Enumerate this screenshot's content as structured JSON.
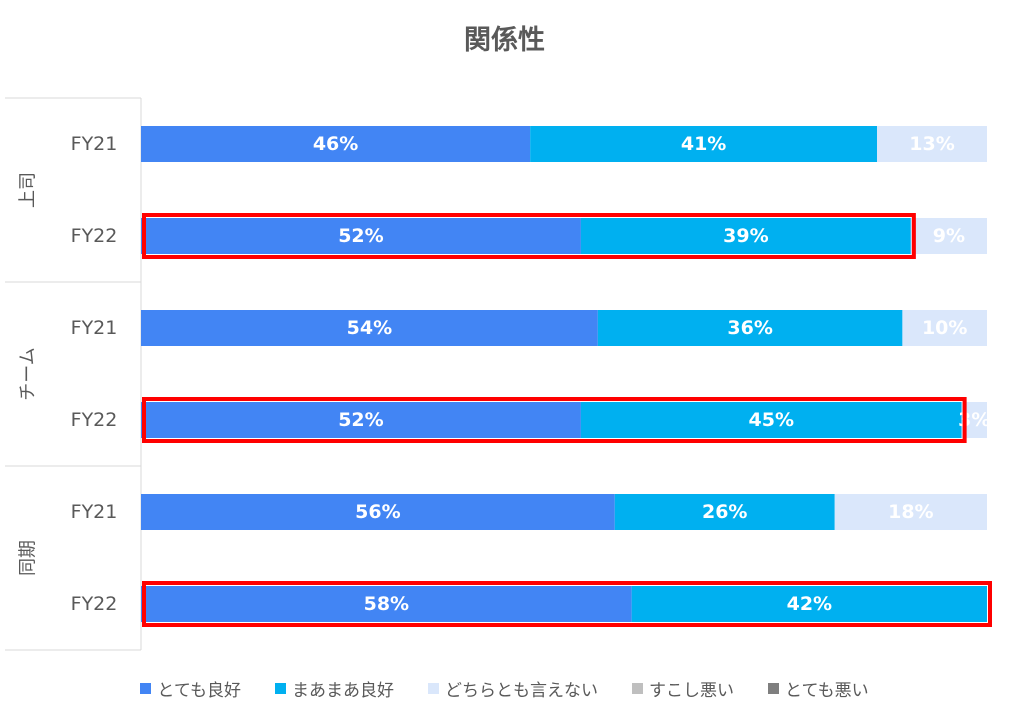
{
  "chart_data": {
    "type": "bar",
    "orientation": "horizontal",
    "stacked": true,
    "percent": true,
    "title": "関係性",
    "xlabel": "",
    "ylabel": "",
    "xlim": [
      0,
      100
    ],
    "grid": false,
    "legend_position": "bottom",
    "groups": [
      {
        "label": "上司",
        "rows": [
          {
            "label": "FY21",
            "values": [
              46,
              41,
              13,
              0,
              0
            ],
            "labels": [
              "46%",
              "41%",
              "13%",
              "",
              ""
            ],
            "highlighted": false
          },
          {
            "label": "FY22",
            "values": [
              52,
              39,
              9,
              0,
              0
            ],
            "labels": [
              "52%",
              "39%",
              "9%",
              "",
              ""
            ],
            "highlighted": true
          }
        ]
      },
      {
        "label": "チーム",
        "rows": [
          {
            "label": "FY21",
            "values": [
              54,
              36,
              10,
              0,
              0
            ],
            "labels": [
              "54%",
              "36%",
              "10%",
              "",
              ""
            ],
            "highlighted": false
          },
          {
            "label": "FY22",
            "values": [
              52,
              45,
              3,
              0,
              0
            ],
            "labels": [
              "52%",
              "45%",
              "3%",
              "",
              ""
            ],
            "highlighted": true
          }
        ]
      },
      {
        "label": "同期",
        "rows": [
          {
            "label": "FY21",
            "values": [
              56,
              26,
              18,
              0,
              0
            ],
            "labels": [
              "56%",
              "26%",
              "18%",
              "",
              ""
            ],
            "highlighted": false
          },
          {
            "label": "FY22",
            "values": [
              58,
              42,
              0,
              0,
              0
            ],
            "labels": [
              "58%",
              "42%",
              "",
              "",
              ""
            ],
            "highlighted": true
          }
        ]
      }
    ],
    "series": [
      {
        "name": "とても良好",
        "color": "#4285f4"
      },
      {
        "name": "まあまあ良好",
        "color": "#00b0f0"
      },
      {
        "name": "どちらとも言えない",
        "color": "#dae7fb"
      },
      {
        "name": "すこし悪い",
        "color": "#bfbfbf"
      },
      {
        "name": "とても悪い",
        "color": "#7f7f7f"
      }
    ],
    "highlight_color": "#ff0000",
    "label_color": "#ffffff",
    "axis_text_color": "#595959",
    "axis_line_color": "#d9d9d9"
  }
}
